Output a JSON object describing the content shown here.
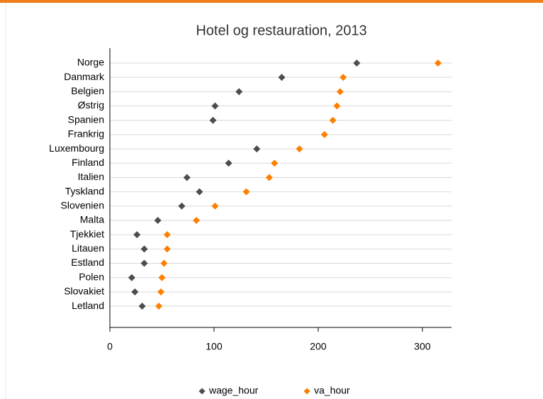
{
  "chart_data": {
    "type": "dot",
    "title": "Hotel og restauration, 2013",
    "categories": [
      "Norge",
      "Danmark",
      "Belgien",
      "Østrig",
      "Spanien",
      "Frankrig",
      "Luxembourg",
      "Finland",
      "Italien",
      "Tyskland",
      "Slovenien",
      "Malta",
      "Tjekkiet",
      "Litauen",
      "Estland",
      "Polen",
      "Slovakiet",
      "Letland"
    ],
    "series": [
      {
        "name": "wage_hour",
        "color": "#4d4d4d",
        "values": [
          237,
          165,
          124,
          101,
          99,
          null,
          141,
          114,
          74,
          86,
          69,
          46,
          26,
          33,
          33,
          21,
          24,
          31
        ]
      },
      {
        "name": "va_hour",
        "color": "#ff8000",
        "values": [
          315,
          224,
          221,
          218,
          214,
          206,
          182,
          158,
          153,
          131,
          101,
          83,
          55,
          55,
          52,
          50,
          49,
          47
        ]
      }
    ],
    "xlim": [
      0,
      328
    ],
    "xticks": [
      0,
      100,
      200,
      300
    ],
    "grid": true
  }
}
